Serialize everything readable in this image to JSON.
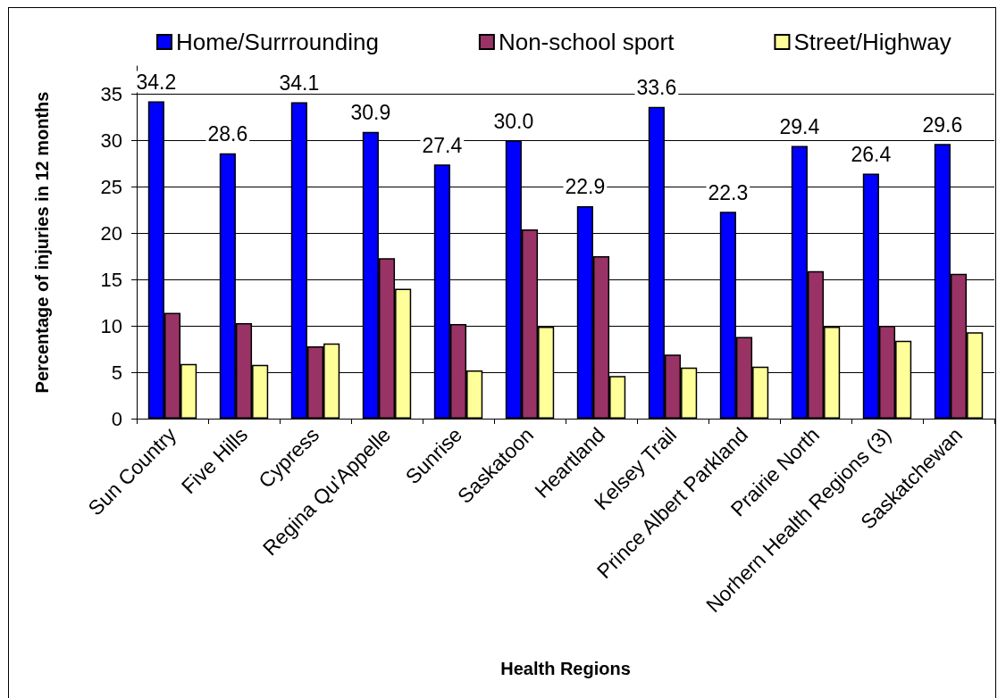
{
  "chart_data": {
    "type": "bar",
    "xlabel": "Health Regions",
    "ylabel": "Percentage of injuries in 12 months",
    "categories": [
      "Sun Country",
      "Five Hills",
      "Cypress",
      "Regina Qu'Appelle",
      "Sunrise",
      "Saskatoon",
      "Heartland",
      "Kelsey Trail",
      "Prince Albert Parkland",
      "Prairie North",
      "Norhern Health Regions (3)",
      "Saskatchewan"
    ],
    "series": [
      {
        "name": "Home/Surrrounding",
        "color": "#0000ff",
        "values": [
          34.2,
          28.6,
          34.1,
          30.9,
          27.4,
          30.0,
          22.9,
          33.6,
          22.3,
          29.4,
          26.4,
          29.6
        ],
        "value_labels": [
          "34.2",
          "28.6",
          "34.1",
          "30.9",
          "27.4",
          "30.0",
          "22.9",
          "33.6",
          "22.3",
          "29.4",
          "26.4",
          "29.6"
        ]
      },
      {
        "name": "Non-school sport",
        "color": "#993366",
        "values": [
          11.4,
          10.3,
          7.8,
          17.3,
          10.2,
          20.4,
          17.5,
          6.9,
          8.8,
          15.9,
          10.0,
          15.6
        ]
      },
      {
        "name": "Street/Highway",
        "color": "#ffff99",
        "values": [
          5.9,
          5.8,
          8.1,
          14.0,
          5.2,
          9.9,
          4.6,
          5.5,
          5.6,
          9.9,
          8.4,
          9.3
        ]
      }
    ],
    "ylim": [
      0,
      38
    ],
    "yticks": [
      0,
      5,
      10,
      15,
      20,
      25,
      30,
      35
    ],
    "grid": "y",
    "legend": "top"
  }
}
